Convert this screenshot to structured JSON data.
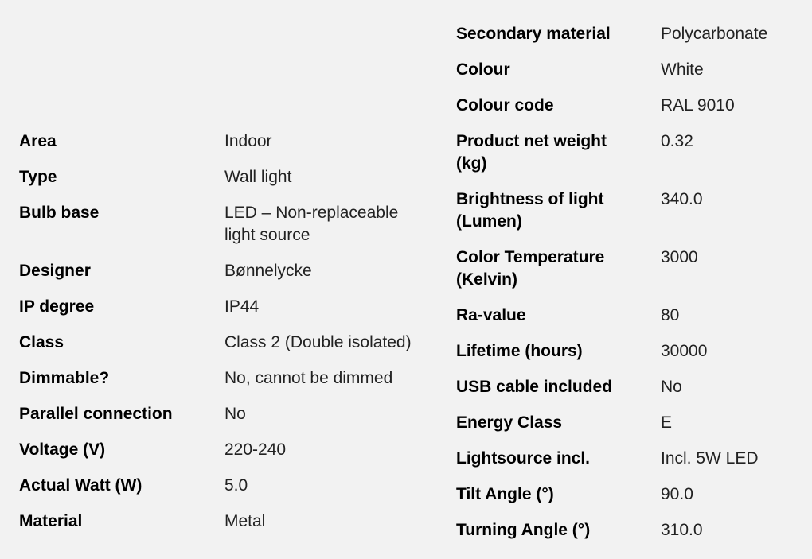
{
  "left_specs": [
    {
      "label": "Area",
      "value": "Indoor"
    },
    {
      "label": "Type",
      "value": "Wall light"
    },
    {
      "label": "Bulb base",
      "value": "LED – Non-replaceable\nlight source"
    },
    {
      "label": "Designer",
      "value": "Bønnelycke"
    },
    {
      "label": "IP degree",
      "value": "IP44"
    },
    {
      "label": "Class",
      "value": "Class 2 (Double isolated)"
    },
    {
      "label": "Dimmable?",
      "value": "No, cannot be dimmed"
    },
    {
      "label": "Parallel connection",
      "value": "No"
    },
    {
      "label": "Voltage (V)",
      "value": "220-240"
    },
    {
      "label": "Actual Watt (W)",
      "value": "5.0"
    },
    {
      "label": "Material",
      "value": "Metal"
    }
  ],
  "right_specs": [
    {
      "label": "Secondary material",
      "value": "Polycarbonate"
    },
    {
      "label": "Colour",
      "value": "White"
    },
    {
      "label": "Colour code",
      "value": "RAL 9010"
    },
    {
      "label": "Product net weight\n(kg)",
      "value": " 0.32"
    },
    {
      "label": "Brightness of light\n(Lumen)",
      "value": " 340.0"
    },
    {
      "label": "Color Temperature\n(Kelvin)",
      "value": " 3000"
    },
    {
      "label": "Ra-value",
      "value": "80"
    },
    {
      "label": "Lifetime (hours)",
      "value": "30000"
    },
    {
      "label": "USB cable included",
      "value": "No"
    },
    {
      "label": "Energy Class",
      "value": "E"
    },
    {
      "label": "Lightsource incl.",
      "value": "Incl. 5W LED"
    },
    {
      "label": "Tilt Angle (°)",
      "value": "90.0"
    },
    {
      "label": "Turning Angle (°)",
      "value": "310.0"
    }
  ]
}
